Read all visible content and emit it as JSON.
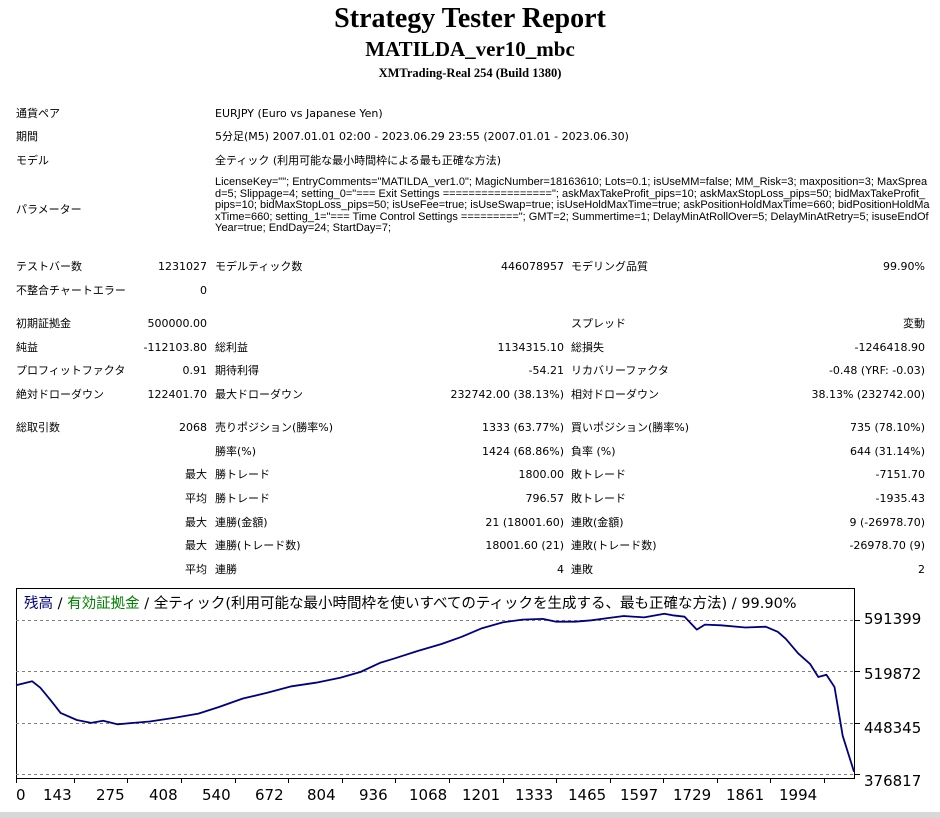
{
  "report": {
    "title": "Strategy Tester Report",
    "expert": "MATILDA_ver10_mbc",
    "server": "XMTrading-Real 254 (Build 1380)"
  },
  "info": {
    "symbol_label": "通貨ペア",
    "symbol": "EURJPY (Euro vs Japanese Yen)",
    "period_label": "期間",
    "period": "5分足(M5) 2007.01.01 02:00 - 2023.06.29 23:55 (2007.01.01 - 2023.06.30)",
    "model_label": "モデル",
    "model": "全ティック (利用可能な最小時間枠による最も正確な方法)",
    "params_label": "パラメーター",
    "params": "LicenseKey=\"\"; EntryComments=\"MATILDA_ver1.0\"; MagicNumber=18163610; Lots=0.1; isUseMM=false; MM_Risk=3; maxposition=3; MaxSpread=5; Slippage=4; setting_0=\"=== Exit Settings =================\"; askMaxTakeProfit_pips=10; askMaxStopLoss_pips=50; bidMaxTakeProfit_pips=10; bidMaxStopLoss_pips=50; isUseFee=true; isUseSwap=true; isUseHoldMaxTime=true; askPositionHoldMaxTime=660; bidPositionHoldMaxTime=660; setting_1=\"=== Time Control Settings =========\"; GMT=2; Summertime=1; DelayMinAtRollOver=5; DelayMinAtRetry=5; isuseEndOfYear=true; EndDay=24; StartDay=7;"
  },
  "stats": {
    "bars_label": "テストバー数",
    "bars": "1231027",
    "ticks_label": "モデルティック数",
    "ticks": "446078957",
    "quality_label": "モデリング品質",
    "quality": "99.90%",
    "mismatch_label": "不整合チャートエラー",
    "mismatch": "0",
    "deposit_label": "初期証拠金",
    "deposit": "500000.00",
    "spread_label": "スプレッド",
    "spread": "変動",
    "net_label": "純益",
    "net": "-112103.80",
    "gross_profit_label": "総利益",
    "gross_profit": "1134315.10",
    "gross_loss_label": "総損失",
    "gross_loss": "-1246418.90",
    "pf_label": "プロフィットファクタ",
    "pf": "0.91",
    "expected_label": "期待利得",
    "expected": "-54.21",
    "recovery_label": "リカバリーファクタ",
    "recovery": "-0.48 (YRF: -0.03)",
    "abs_dd_label": "絶対ドローダウン",
    "abs_dd": "122401.70",
    "max_dd_label": "最大ドローダウン",
    "max_dd": "232742.00 (38.13%)",
    "rel_dd_label": "相対ドローダウン",
    "rel_dd": "38.13% (232742.00)",
    "trades_label": "総取引数",
    "trades": "2068",
    "short_label": "売りポジション(勝率%)",
    "short": "1333 (63.77%)",
    "long_label": "買いポジション(勝率%)",
    "long": "735 (78.10%)",
    "win_label": "勝率(%)",
    "win": "1424 (68.86%)",
    "loss_label": "負率 (%)",
    "loss": "644 (31.14%)",
    "max_word": "最大",
    "avg_word": "平均",
    "lw_label": "勝トレード",
    "lw": "1800.00",
    "ll_label": "敗トレード",
    "ll": "-7151.70",
    "aw_label": "勝トレード",
    "aw": "796.57",
    "al_label": "敗トレード",
    "al": "-1935.43",
    "mcw_label": "連勝(金額)",
    "mcw": "21 (18001.60)",
    "mcl_label": "連敗(金額)",
    "mcl": "9 (-26978.70)",
    "mcp_label": "連勝(トレード数)",
    "mcp": "18001.60 (21)",
    "mcpl_label": "連敗(トレード数)",
    "mcpl": "-26978.70 (9)",
    "acw_label": "連勝",
    "acw": "4",
    "acl_label": "連敗",
    "acl": "2"
  },
  "chart": {
    "legend_balance": "残高",
    "legend_sep1": " / ",
    "legend_equity": "有効証拠金",
    "legend_rest": " / 全ティック(利用可能な最小時間枠を使いすべてのティックを生成する、最も正確な方法) / 99.90%",
    "colors": {
      "line": "#000080",
      "equity": "#008000",
      "grid": "#808080",
      "frame": "#000000"
    }
  },
  "chart_data": {
    "type": "line",
    "title": "",
    "x_ticks": [
      "0",
      "143",
      "275",
      "408",
      "540",
      "672",
      "804",
      "936",
      "1068",
      "1201",
      "1333",
      "1465",
      "1597",
      "1729",
      "1861",
      "1994"
    ],
    "y_ticks": [
      "591399",
      "519872",
      "448345",
      "376817"
    ],
    "ylim": [
      376817,
      618000
    ],
    "xlim": [
      0,
      2068
    ],
    "grid": true,
    "series": [
      {
        "x": [
          0,
          40,
          60,
          85,
          110,
          150,
          185,
          215,
          250,
          290,
          330,
          390,
          450,
          500,
          560,
          620,
          680,
          740,
          800,
          850,
          900,
          935,
          990,
          1050,
          1100,
          1150,
          1201,
          1250,
          1300,
          1333,
          1380,
          1420,
          1460,
          1500,
          1550,
          1600,
          1620,
          1650,
          1680,
          1700,
          1740,
          1800,
          1850,
          1880,
          1900,
          1930,
          1960,
          1980,
          2000,
          2020,
          2040,
          2068
        ],
        "y": [
          500500,
          506000,
          497000,
          480000,
          462000,
          452000,
          448000,
          451000,
          446000,
          448000,
          450000,
          455000,
          461000,
          470000,
          482000,
          490000,
          499000,
          504000,
          511000,
          519000,
          532000,
          538000,
          548000,
          558000,
          568000,
          580000,
          588000,
          592000,
          593000,
          589000,
          589000,
          591000,
          594000,
          597000,
          595000,
          600000,
          598000,
          596000,
          578000,
          585000,
          584000,
          581000,
          582000,
          575000,
          565000,
          545000,
          530000,
          512000,
          515000,
          498000,
          430000,
          380000
        ]
      }
    ]
  }
}
